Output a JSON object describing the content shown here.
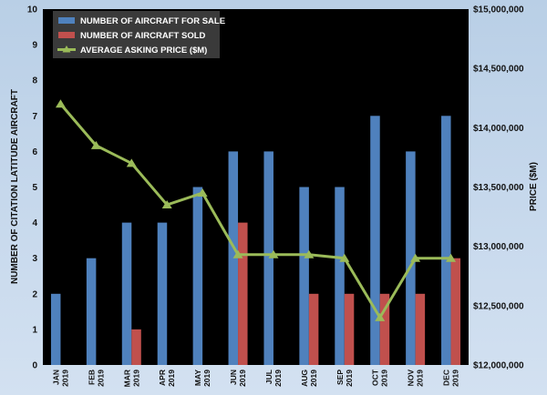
{
  "chart_data": {
    "type": "bar",
    "categories": [
      [
        "JAN",
        "2019"
      ],
      [
        "FEB",
        "2019"
      ],
      [
        "MAR",
        "2019"
      ],
      [
        "APR",
        "2019"
      ],
      [
        "MAY",
        "2019"
      ],
      [
        "JUN",
        "2019"
      ],
      [
        "JUL",
        "2019"
      ],
      [
        "AUG",
        "2019"
      ],
      [
        "SEP",
        "2019"
      ],
      [
        "OCT",
        "2019"
      ],
      [
        "NOV",
        "2019"
      ],
      [
        "DEC",
        "2019"
      ]
    ],
    "series": [
      {
        "name": "NUMBER OF AIRCRAFT FOR SALE",
        "type": "bar",
        "axis": "left",
        "color": "#4f81bd",
        "values": [
          2,
          3,
          4,
          4,
          5,
          6,
          6,
          5,
          5,
          7,
          6,
          7
        ]
      },
      {
        "name": "NUMBER OF AIRCRAFT SOLD",
        "type": "bar",
        "axis": "left",
        "color": "#c0504d",
        "values": [
          0,
          0,
          1,
          0,
          0,
          4,
          0,
          2,
          2,
          2,
          2,
          3
        ]
      },
      {
        "name": "AVERAGE ASKING PRICE ($M)",
        "type": "line",
        "axis": "right",
        "color": "#9bbb59",
        "values": [
          14200000,
          13850000,
          13700000,
          13350000,
          13450000,
          12930000,
          12930000,
          12930000,
          12900000,
          12400000,
          12900000,
          12900000
        ]
      }
    ],
    "ylabel": "NUMBER OF CITATION LATITUDE AIRCRAFT",
    "y2label": "PRICE ($M)",
    "ylim": [
      0,
      10
    ],
    "y2lim": [
      12000000,
      15000000
    ],
    "yticks": [
      "0",
      "1",
      "2",
      "3",
      "4",
      "5",
      "6",
      "7",
      "8",
      "9",
      "10"
    ],
    "y2ticks": [
      "$12,000,000",
      "$12,500,000",
      "$13,000,000",
      "$13,500,000",
      "$14,000,000",
      "$14,500,000",
      "$15,000,000"
    ],
    "legend_position": "top-left",
    "grid": false,
    "plot_background": "#000000"
  }
}
